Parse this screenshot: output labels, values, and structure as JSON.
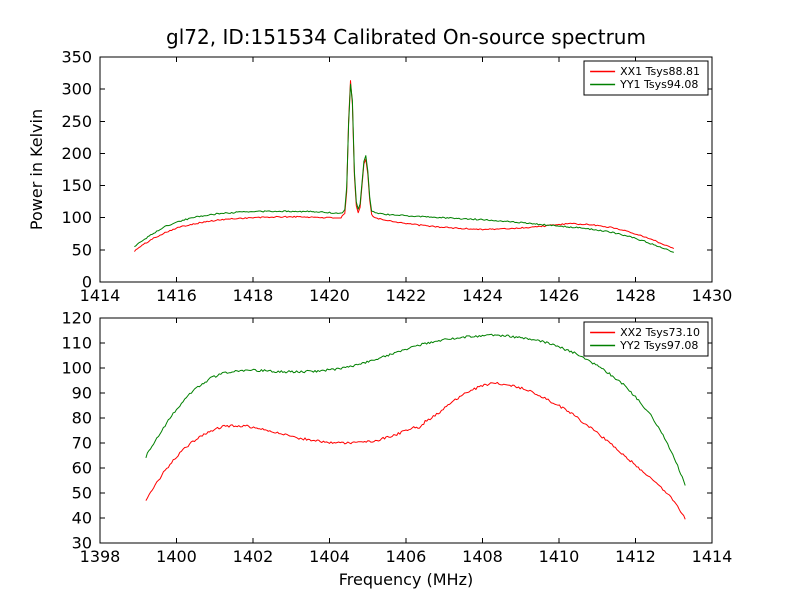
{
  "figure": {
    "background": "#ffffff"
  },
  "chart_data": [
    {
      "type": "line",
      "title": "gl72, ID:151534 Calibrated On-source spectrum",
      "xlabel": "",
      "ylabel": "Power in Kelvin",
      "xlim": [
        1414,
        1430
      ],
      "ylim": [
        0,
        350
      ],
      "xticks": [
        1414,
        1416,
        1418,
        1420,
        1422,
        1424,
        1426,
        1428,
        1430
      ],
      "yticks": [
        0,
        50,
        100,
        150,
        200,
        250,
        300,
        350
      ],
      "grid": false,
      "legend_position": "upper right",
      "series": [
        {
          "name": "XX1 Tsys88.81",
          "color": "#ff0000",
          "noise": 1.0,
          "points": [
            [
              1414.9,
              48
            ],
            [
              1415.1,
              57
            ],
            [
              1415.4,
              68
            ],
            [
              1415.7,
              77
            ],
            [
              1416.0,
              84
            ],
            [
              1416.4,
              90
            ],
            [
              1416.8,
              94
            ],
            [
              1417.2,
              97
            ],
            [
              1417.6,
              99
            ],
            [
              1418.0,
              100
            ],
            [
              1418.5,
              101
            ],
            [
              1419.0,
              101.5
            ],
            [
              1419.5,
              101
            ],
            [
              1420.0,
              100
            ],
            [
              1420.3,
              100
            ],
            [
              1420.4,
              106
            ],
            [
              1420.45,
              140
            ],
            [
              1420.5,
              250
            ],
            [
              1420.55,
              313
            ],
            [
              1420.6,
              275
            ],
            [
              1420.65,
              165
            ],
            [
              1420.7,
              118
            ],
            [
              1420.75,
              108
            ],
            [
              1420.8,
              116
            ],
            [
              1420.85,
              150
            ],
            [
              1420.9,
              183
            ],
            [
              1420.95,
              191
            ],
            [
              1421.0,
              168
            ],
            [
              1421.05,
              128
            ],
            [
              1421.1,
              105
            ],
            [
              1421.2,
              100
            ],
            [
              1421.4,
              97
            ],
            [
              1421.7,
              94
            ],
            [
              1422.0,
              91
            ],
            [
              1422.5,
              87.5
            ],
            [
              1423.0,
              85
            ],
            [
              1423.5,
              83
            ],
            [
              1424.0,
              82
            ],
            [
              1424.5,
              82.5
            ],
            [
              1425.0,
              84
            ],
            [
              1425.5,
              86.5
            ],
            [
              1426.0,
              89.5
            ],
            [
              1426.3,
              90.5
            ],
            [
              1426.6,
              90
            ],
            [
              1427.0,
              88
            ],
            [
              1427.4,
              84.5
            ],
            [
              1427.8,
              79
            ],
            [
              1428.2,
              71
            ],
            [
              1428.6,
              62
            ],
            [
              1429.0,
              52
            ]
          ]
        },
        {
          "name": "YY1 Tsys94.08",
          "color": "#008000",
          "noise": 1.0,
          "points": [
            [
              1414.9,
              55
            ],
            [
              1415.1,
              64
            ],
            [
              1415.4,
              76
            ],
            [
              1415.7,
              86
            ],
            [
              1416.0,
              93
            ],
            [
              1416.4,
              100
            ],
            [
              1416.8,
              104
            ],
            [
              1417.2,
              107
            ],
            [
              1417.6,
              108.5
            ],
            [
              1418.0,
              109.5
            ],
            [
              1418.5,
              110
            ],
            [
              1419.0,
              110
            ],
            [
              1419.5,
              109.5
            ],
            [
              1420.0,
              108
            ],
            [
              1420.3,
              106.5
            ],
            [
              1420.4,
              112
            ],
            [
              1420.45,
              148
            ],
            [
              1420.5,
              245
            ],
            [
              1420.55,
              307
            ],
            [
              1420.6,
              282
            ],
            [
              1420.65,
              172
            ],
            [
              1420.7,
              124
            ],
            [
              1420.75,
              113
            ],
            [
              1420.8,
              121
            ],
            [
              1420.85,
              155
            ],
            [
              1420.9,
              188
            ],
            [
              1420.95,
              196
            ],
            [
              1421.0,
              173
            ],
            [
              1421.05,
              133
            ],
            [
              1421.1,
              111
            ],
            [
              1421.2,
              107
            ],
            [
              1421.4,
              105.5
            ],
            [
              1421.7,
              104.5
            ],
            [
              1422.0,
              103
            ],
            [
              1422.5,
              101.5
            ],
            [
              1423.0,
              100
            ],
            [
              1423.5,
              98.5
            ],
            [
              1424.0,
              97
            ],
            [
              1424.5,
              95
            ],
            [
              1425.0,
              92.5
            ],
            [
              1425.5,
              89.5
            ],
            [
              1426.0,
              87
            ],
            [
              1426.5,
              84.5
            ],
            [
              1427.0,
              81
            ],
            [
              1427.4,
              77
            ],
            [
              1427.8,
              71.5
            ],
            [
              1428.2,
              64
            ],
            [
              1428.6,
              55.5
            ],
            [
              1429.0,
              46
            ]
          ]
        }
      ]
    },
    {
      "type": "line",
      "title": "",
      "xlabel": "Frequency (MHz)",
      "ylabel": "",
      "xlim": [
        1398,
        1414
      ],
      "ylim": [
        30,
        120
      ],
      "xticks": [
        1398,
        1400,
        1402,
        1404,
        1406,
        1408,
        1410,
        1412,
        1414
      ],
      "yticks": [
        30,
        40,
        50,
        60,
        70,
        80,
        90,
        100,
        110,
        120
      ],
      "grid": false,
      "legend_position": "upper right",
      "series": [
        {
          "name": "XX2 Tsys73.10",
          "color": "#ff0000",
          "noise": 0.5,
          "points": [
            [
              1399.2,
              47
            ],
            [
              1399.4,
              52
            ],
            [
              1399.7,
              59
            ],
            [
              1400.0,
              64.5
            ],
            [
              1400.3,
              69
            ],
            [
              1400.6,
              72.5
            ],
            [
              1400.9,
              75
            ],
            [
              1401.2,
              76.5
            ],
            [
              1401.5,
              77
            ],
            [
              1401.8,
              76.8
            ],
            [
              1402.1,
              76
            ],
            [
              1402.4,
              75
            ],
            [
              1402.8,
              73.5
            ],
            [
              1403.2,
              72
            ],
            [
              1403.6,
              71
            ],
            [
              1404.0,
              70.3
            ],
            [
              1404.4,
              70
            ],
            [
              1404.8,
              70.2
            ],
            [
              1405.2,
              71
            ],
            [
              1405.6,
              72.5
            ],
            [
              1406.0,
              75
            ],
            [
              1406.2,
              76.5
            ],
            [
              1406.35,
              76
            ],
            [
              1406.5,
              78.5
            ],
            [
              1406.8,
              81.5
            ],
            [
              1407.1,
              85
            ],
            [
              1407.4,
              88.5
            ],
            [
              1407.7,
              91
            ],
            [
              1408.0,
              93
            ],
            [
              1408.3,
              94
            ],
            [
              1408.6,
              93.5
            ],
            [
              1408.9,
              92.5
            ],
            [
              1409.2,
              91
            ],
            [
              1409.5,
              89
            ],
            [
              1409.8,
              86.5
            ],
            [
              1410.1,
              84
            ],
            [
              1410.4,
              81
            ],
            [
              1410.7,
              77.5
            ],
            [
              1411.0,
              74
            ],
            [
              1411.3,
              70.5
            ],
            [
              1411.6,
              66.5
            ],
            [
              1411.9,
              62.5
            ],
            [
              1412.2,
              58.5
            ],
            [
              1412.5,
              54.5
            ],
            [
              1412.8,
              50.5
            ],
            [
              1413.1,
              45
            ],
            [
              1413.3,
              39.5
            ]
          ]
        },
        {
          "name": "YY2 Tsys97.08",
          "color": "#008000",
          "noise": 0.5,
          "points": [
            [
              1399.2,
              64.5
            ],
            [
              1399.4,
              70
            ],
            [
              1399.7,
              77
            ],
            [
              1400.0,
              83.5
            ],
            [
              1400.3,
              89
            ],
            [
              1400.6,
              93
            ],
            [
              1400.9,
              96
            ],
            [
              1401.2,
              97.8
            ],
            [
              1401.5,
              98.6
            ],
            [
              1401.8,
              99
            ],
            [
              1402.1,
              99
            ],
            [
              1402.5,
              98.7
            ],
            [
              1402.9,
              98.5
            ],
            [
              1403.3,
              98.5
            ],
            [
              1403.7,
              98.8
            ],
            [
              1404.1,
              99.4
            ],
            [
              1404.5,
              100.5
            ],
            [
              1404.9,
              102
            ],
            [
              1405.3,
              104
            ],
            [
              1405.7,
              106
            ],
            [
              1406.1,
              108
            ],
            [
              1406.5,
              109.8
            ],
            [
              1406.9,
              111
            ],
            [
              1407.3,
              112
            ],
            [
              1407.7,
              112.7
            ],
            [
              1408.0,
              113
            ],
            [
              1408.4,
              113
            ],
            [
              1408.8,
              112.5
            ],
            [
              1409.2,
              111.7
            ],
            [
              1409.6,
              110.5
            ],
            [
              1410.0,
              108.5
            ],
            [
              1410.4,
              106
            ],
            [
              1410.8,
              102.8
            ],
            [
              1411.2,
              99
            ],
            [
              1411.6,
              94.5
            ],
            [
              1412.0,
              88.5
            ],
            [
              1412.4,
              81
            ],
            [
              1412.8,
              71
            ],
            [
              1413.1,
              61
            ],
            [
              1413.3,
              53
            ]
          ]
        }
      ]
    }
  ]
}
